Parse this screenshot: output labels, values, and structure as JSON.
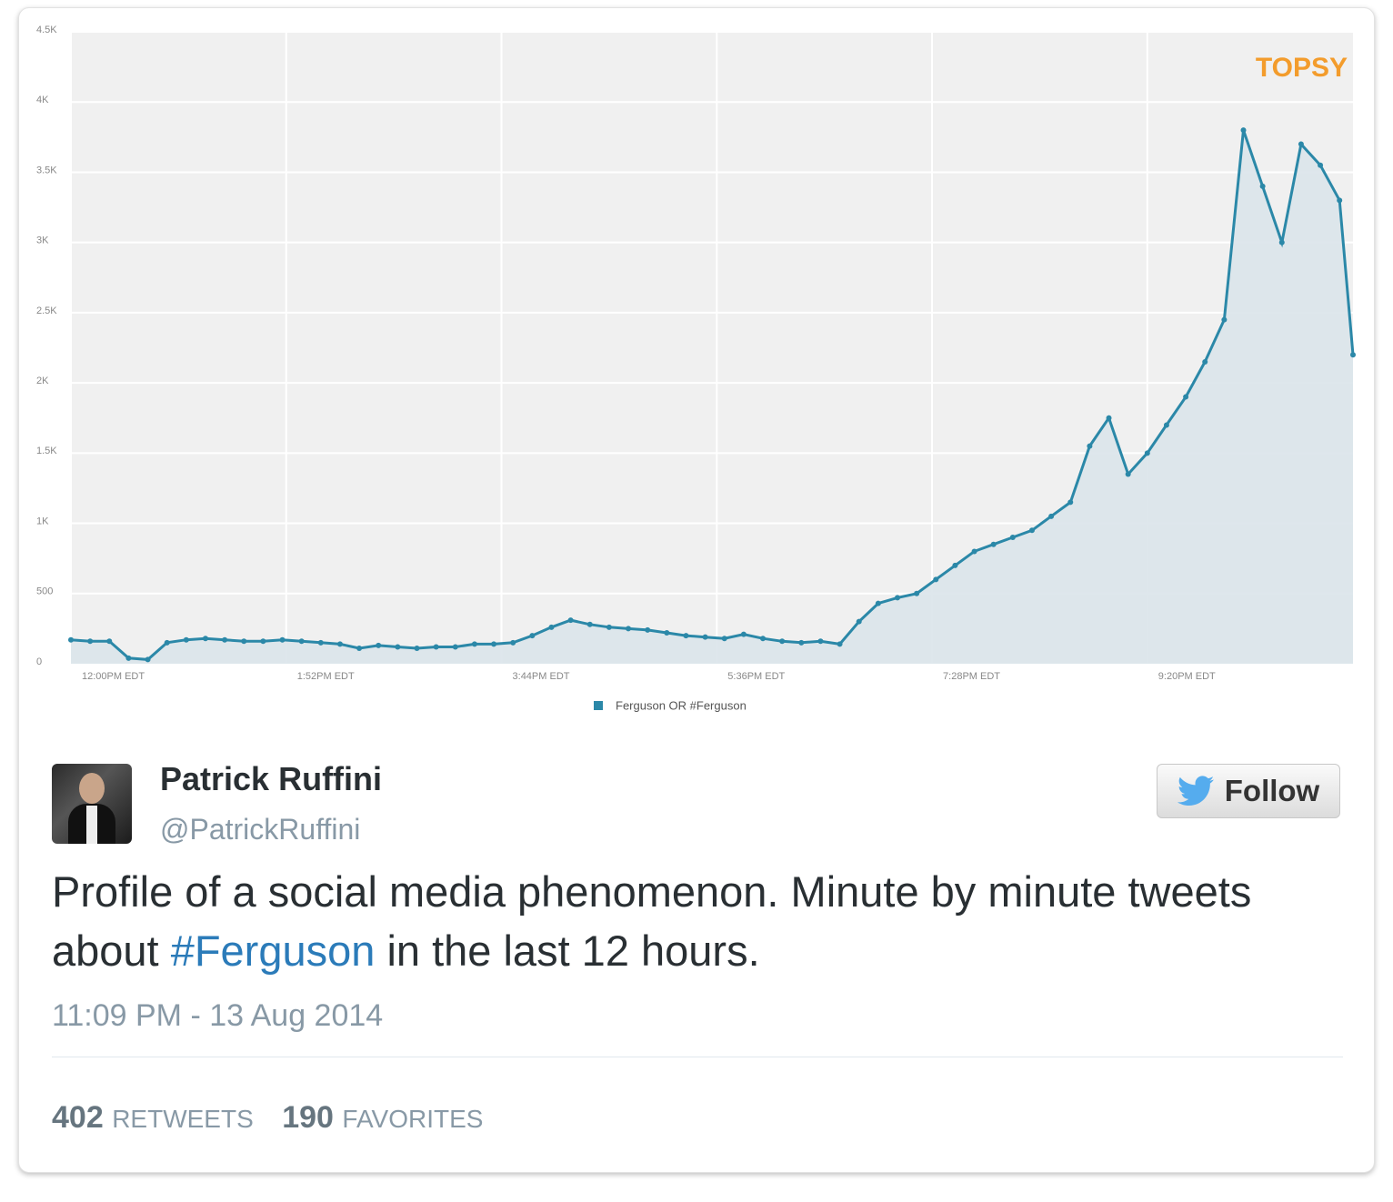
{
  "chart_data": {
    "type": "line",
    "legend": "Ferguson OR #Ferguson",
    "watermark": "TOPSY",
    "grid": true,
    "xlim": [
      720,
      1387
    ],
    "xticks": [
      {
        "value": 720,
        "label": "12:00PM EDT"
      },
      {
        "value": 832,
        "label": "1:52PM EDT"
      },
      {
        "value": 944,
        "label": "3:44PM EDT"
      },
      {
        "value": 1056,
        "label": "5:36PM EDT"
      },
      {
        "value": 1168,
        "label": "7:28PM EDT"
      },
      {
        "value": 1280,
        "label": "9:20PM EDT"
      }
    ],
    "ylim": [
      0,
      4500
    ],
    "yticks": [
      0,
      500,
      {
        "value": 1000,
        "label": "1K"
      },
      {
        "value": 1500,
        "label": "1.5K"
      },
      {
        "value": 2000,
        "label": "2K"
      },
      {
        "value": 2500,
        "label": "2.5K"
      },
      {
        "value": 3000,
        "label": "3K"
      },
      {
        "value": 3500,
        "label": "3.5K"
      },
      {
        "value": 4000,
        "label": "4K"
      },
      {
        "value": 4500,
        "label": "4.5K"
      }
    ],
    "x": [
      720,
      730,
      740,
      750,
      760,
      770,
      780,
      790,
      800,
      810,
      820,
      830,
      840,
      850,
      860,
      870,
      880,
      890,
      900,
      910,
      920,
      930,
      940,
      950,
      960,
      970,
      980,
      990,
      1000,
      1010,
      1020,
      1030,
      1040,
      1050,
      1060,
      1070,
      1080,
      1090,
      1100,
      1110,
      1120,
      1130,
      1140,
      1150,
      1160,
      1170,
      1180,
      1190,
      1200,
      1210,
      1220,
      1230,
      1240,
      1250,
      1260,
      1270,
      1280,
      1290,
      1300,
      1310,
      1320,
      1330,
      1340,
      1350,
      1360,
      1370,
      1380,
      1387
    ],
    "series": [
      {
        "name": "Ferguson OR #Ferguson",
        "color": "#2b88a8",
        "values": [
          170,
          160,
          160,
          40,
          30,
          150,
          170,
          180,
          170,
          160,
          160,
          170,
          160,
          150,
          140,
          110,
          130,
          120,
          110,
          120,
          120,
          140,
          140,
          150,
          200,
          260,
          310,
          280,
          260,
          250,
          240,
          220,
          200,
          190,
          180,
          210,
          180,
          160,
          150,
          160,
          140,
          300,
          430,
          470,
          500,
          600,
          700,
          800,
          850,
          900,
          950,
          1050,
          1150,
          1550,
          1750,
          1350,
          1500,
          1700,
          1900,
          2150,
          2450,
          3800,
          3400,
          3000,
          3700,
          3550,
          3300,
          2200
        ]
      }
    ]
  },
  "tweet": {
    "name": "Patrick Ruffini",
    "handle": "@PatrickRuffini",
    "follow": "Follow",
    "text_before": "Profile of a social media phenomenon. Minute by minute tweets about ",
    "hashtag": "#Ferguson",
    "text_after": " in the last 12 hours.",
    "timestamp": "11:09 PM - 13 Aug 2014",
    "retweets": "402",
    "retweets_label": "RETWEETS",
    "favorites": "190",
    "favorites_label": "FAVORITES"
  }
}
